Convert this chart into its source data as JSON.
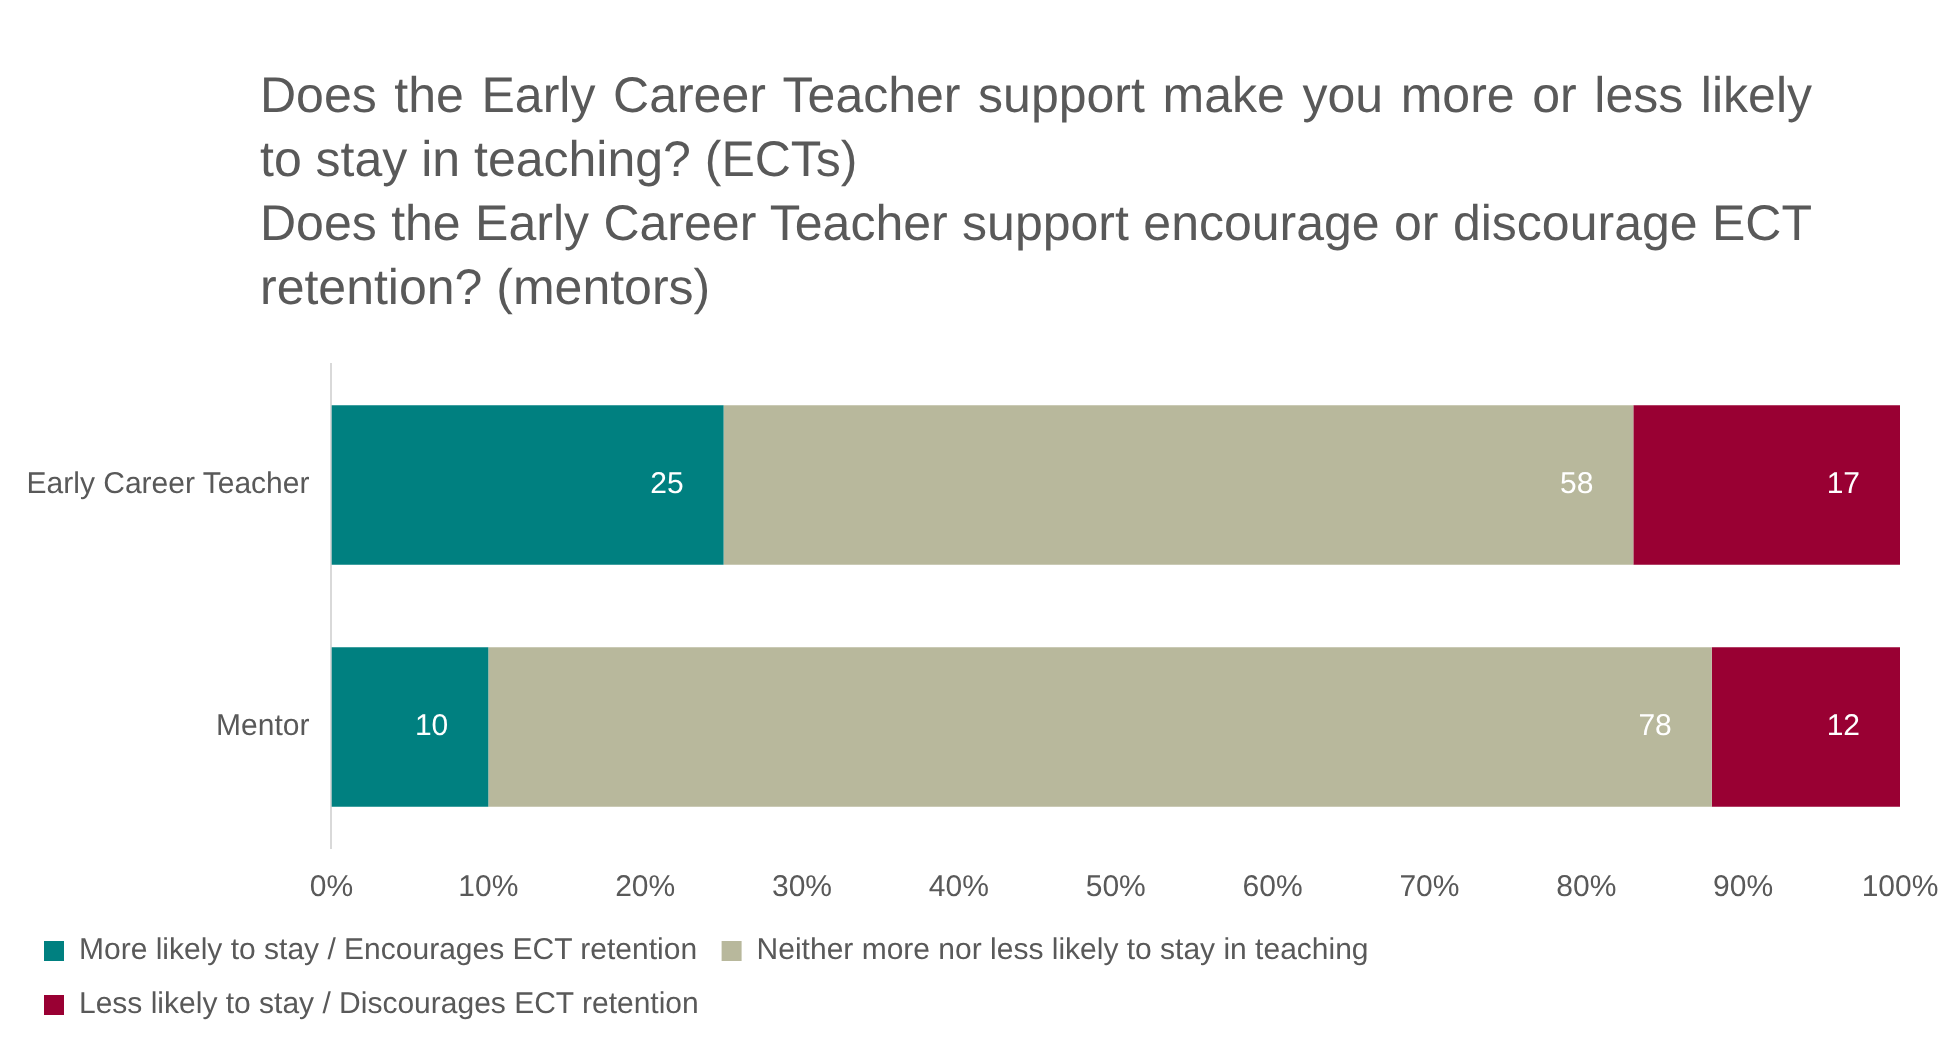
{
  "chart_data": {
    "type": "bar",
    "orientation": "horizontal",
    "stacked": true,
    "title": "Does the Early Career Teacher support make you more or less likely to stay in teaching? (ECTs)",
    "subtitle": "Does the Early Career Teacher support encourage or discourage ECT retention? (mentors)",
    "categories": [
      "Early Career Teacher",
      "Mentor"
    ],
    "series": [
      {
        "name": "More likely to stay / Encourages ECT retention",
        "color": "#008080",
        "values": [
          25,
          10
        ]
      },
      {
        "name": "Neither more nor less likely to stay in teaching",
        "color": "#b8b89c",
        "values": [
          58,
          78
        ]
      },
      {
        "name": "Less likely to stay / Discourages ECT retention",
        "color": "#990033",
        "values": [
          17,
          12
        ]
      }
    ],
    "xlim": [
      0,
      100
    ],
    "xticks": [
      {
        "value": 0,
        "label": "0%"
      },
      {
        "value": 10,
        "label": "10%"
      },
      {
        "value": 20,
        "label": "20%"
      },
      {
        "value": 30,
        "label": "30%"
      },
      {
        "value": 40,
        "label": "40%"
      },
      {
        "value": 50,
        "label": "50%"
      },
      {
        "value": 60,
        "label": "60%"
      },
      {
        "value": 70,
        "label": "70%"
      },
      {
        "value": 80,
        "label": "80%"
      },
      {
        "value": 90,
        "label": "90%"
      },
      {
        "value": 100,
        "label": "100%"
      }
    ],
    "data_labels": true,
    "legend": "bottom"
  }
}
